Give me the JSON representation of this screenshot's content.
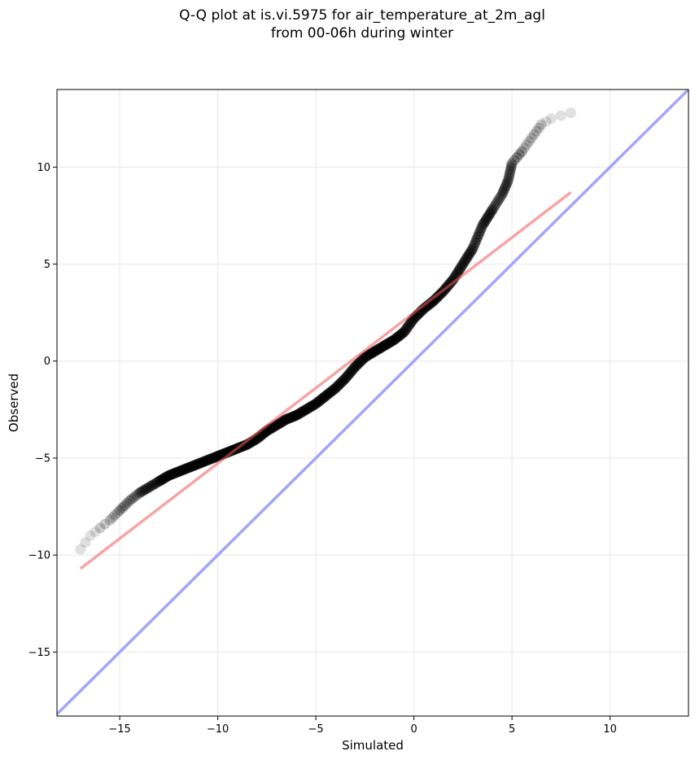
{
  "chart_data": {
    "type": "scatter",
    "title": "Q-Q plot at is.vi.5975 for air_temperature_at_2m_agl",
    "subtitle": "from 00-06h during winter",
    "xlabel": "Simulated",
    "ylabel": "Observed",
    "xlim": [
      -18.2,
      14.0
    ],
    "ylim": [
      -18.3,
      14.0
    ],
    "xticks": [
      -15,
      -10,
      -5,
      0,
      5,
      10
    ],
    "yticks": [
      -15,
      -10,
      -5,
      0,
      5,
      10
    ],
    "xtick_labels": [
      "−15",
      "−10",
      "−5",
      "0",
      "5",
      "10"
    ],
    "ytick_labels": [
      "−15",
      "−10",
      "−5",
      "0",
      "5",
      "10"
    ],
    "grid": true,
    "colors": {
      "points": "#000000",
      "fit_line": "#f4a3a3",
      "identity_line": "#a5a5f7",
      "grid": "#ebebeb"
    },
    "quantile_curve": [
      [
        -17.0,
        -9.7
      ],
      [
        -16.5,
        -9.0
      ],
      [
        -16.0,
        -8.6
      ],
      [
        -15.5,
        -8.2
      ],
      [
        -15.0,
        -7.7
      ],
      [
        -14.5,
        -7.2
      ],
      [
        -14.0,
        -6.8
      ],
      [
        -13.5,
        -6.5
      ],
      [
        -13.0,
        -6.2
      ],
      [
        -12.5,
        -5.9
      ],
      [
        -12.0,
        -5.7
      ],
      [
        -11.5,
        -5.5
      ],
      [
        -11.0,
        -5.3
      ],
      [
        -10.5,
        -5.1
      ],
      [
        -10.0,
        -4.9
      ],
      [
        -9.5,
        -4.7
      ],
      [
        -9.0,
        -4.5
      ],
      [
        -8.5,
        -4.3
      ],
      [
        -8.0,
        -4.0
      ],
      [
        -7.5,
        -3.6
      ],
      [
        -7.0,
        -3.3
      ],
      [
        -6.5,
        -3.0
      ],
      [
        -6.0,
        -2.8
      ],
      [
        -5.5,
        -2.5
      ],
      [
        -5.0,
        -2.2
      ],
      [
        -4.5,
        -1.8
      ],
      [
        -4.0,
        -1.4
      ],
      [
        -3.5,
        -0.9
      ],
      [
        -3.0,
        -0.3
      ],
      [
        -2.5,
        0.2
      ],
      [
        -2.0,
        0.5
      ],
      [
        -1.5,
        0.8
      ],
      [
        -1.0,
        1.1
      ],
      [
        -0.5,
        1.5
      ],
      [
        0.0,
        2.2
      ],
      [
        0.5,
        2.7
      ],
      [
        1.0,
        3.1
      ],
      [
        1.5,
        3.6
      ],
      [
        2.0,
        4.2
      ],
      [
        2.5,
        5.0
      ],
      [
        3.0,
        5.8
      ],
      [
        3.5,
        7.0
      ],
      [
        4.0,
        7.8
      ],
      [
        4.5,
        8.6
      ],
      [
        4.8,
        9.3
      ],
      [
        5.0,
        10.2
      ],
      [
        5.5,
        10.8
      ],
      [
        6.0,
        11.5
      ],
      [
        6.5,
        12.2
      ],
      [
        7.0,
        12.5
      ],
      [
        8.0,
        12.8
      ]
    ],
    "fit_line": {
      "from": [
        -17.0,
        -10.7
      ],
      "to": [
        8.0,
        8.7
      ]
    },
    "identity_line": {
      "from": [
        -18.2,
        -18.2
      ],
      "to": [
        14.0,
        14.0
      ]
    }
  }
}
